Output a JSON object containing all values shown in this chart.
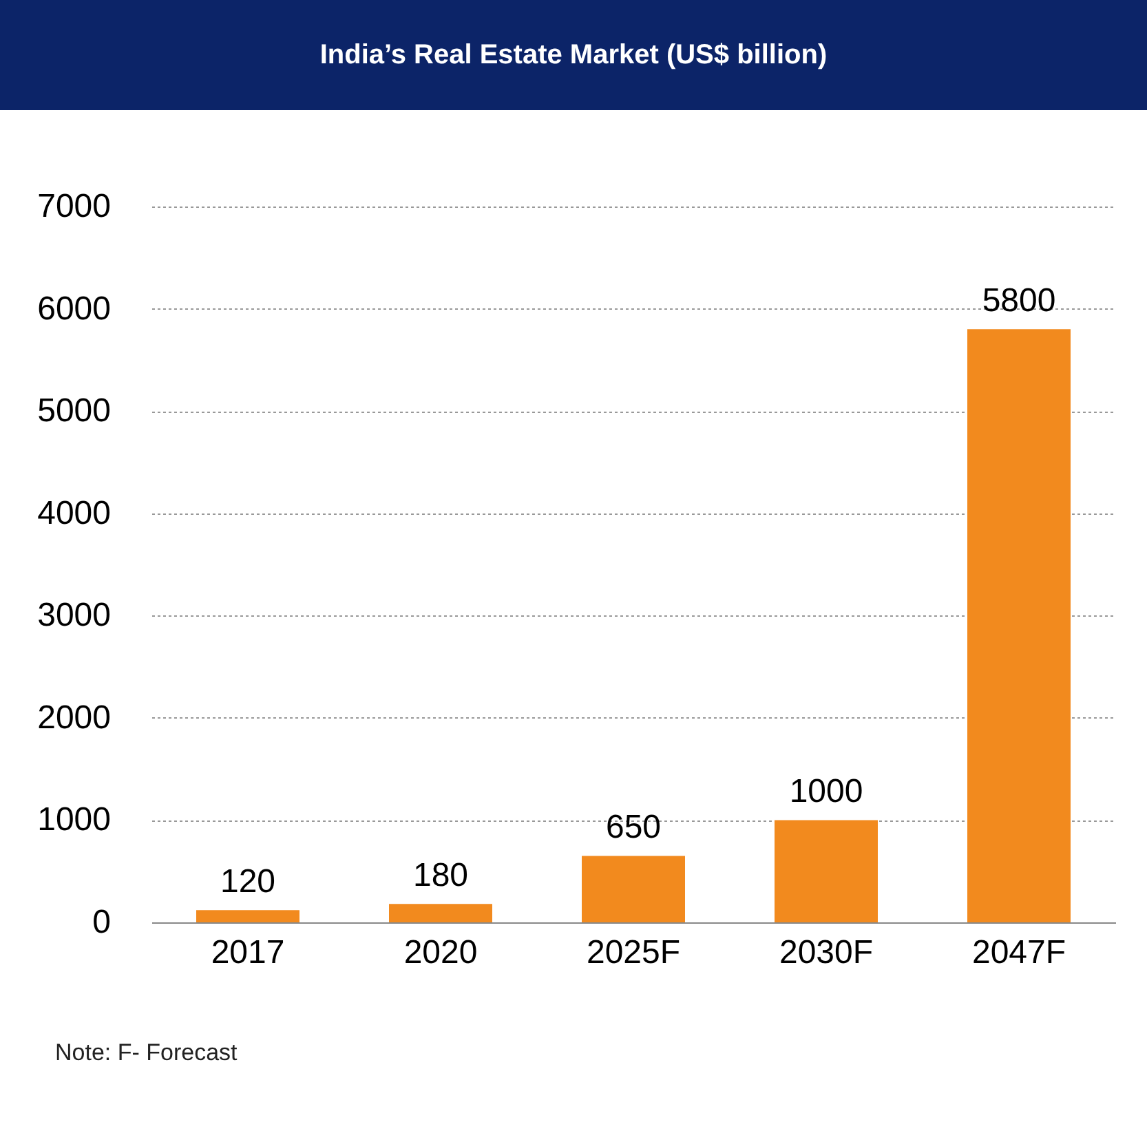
{
  "chart_data": {
    "type": "bar",
    "title": "India’s Real Estate Market (US$ billion)",
    "categories": [
      "2017",
      "2020",
      "2025F",
      "2030F",
      "2047F"
    ],
    "values": [
      120,
      180,
      650,
      1000,
      5800
    ],
    "color": "#f28a1e",
    "ylim": [
      0,
      7000
    ],
    "yticks": [
      0,
      1000,
      2000,
      3000,
      4000,
      5000,
      6000,
      7000
    ],
    "grid": "y",
    "data_labels": true,
    "annotations": [
      "Note: F- Forecast"
    ]
  }
}
